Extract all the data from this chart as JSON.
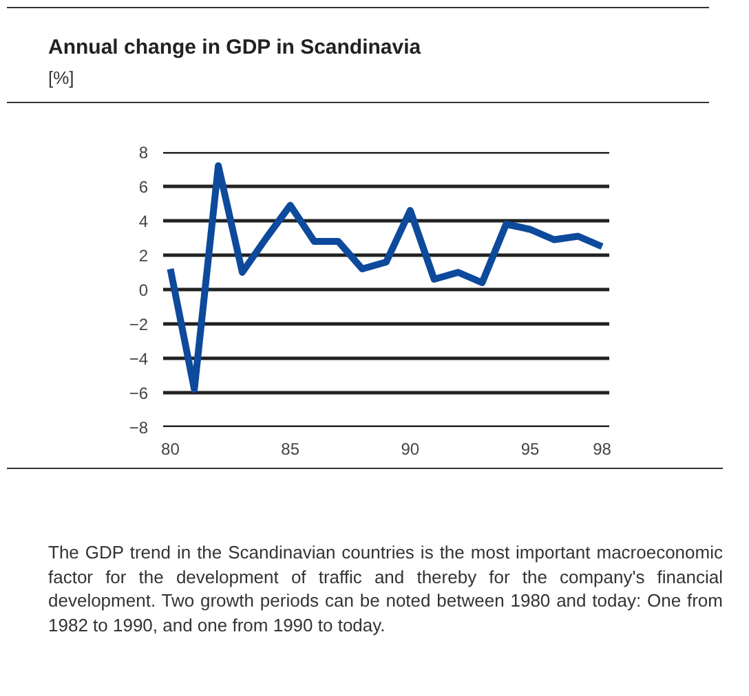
{
  "chart_data": {
    "type": "line",
    "title": "Annual change in GDP in Scandinavia",
    "subtitle": "[%]",
    "x": [
      80,
      81,
      82,
      83,
      84,
      85,
      86,
      87,
      88,
      89,
      90,
      91,
      92,
      93,
      94,
      95,
      96,
      97,
      98
    ],
    "series": [
      {
        "color": "#0d4a9c",
        "values": [
          1.2,
          -5.8,
          7.2,
          1.0,
          3.0,
          4.9,
          2.8,
          2.8,
          1.2,
          1.6,
          4.6,
          0.6,
          1.0,
          0.4,
          3.8,
          3.5,
          2.9,
          3.1,
          2.5
        ]
      }
    ],
    "xlim": [
      79.7,
      98.3
    ],
    "xticks": [
      80,
      85,
      90,
      95,
      98
    ],
    "ylim": [
      -8,
      8
    ],
    "yticks": [
      -8,
      -6,
      -4,
      -2,
      0,
      2,
      4,
      6,
      8
    ],
    "grid": "y",
    "marker": "none",
    "line_style": "solid",
    "annotations": [
      "The GDP trend in the Scandinavian countries is the most important macroeconomic factor for the development of traffic and thereby for the company's financial development. Two growth periods can be noted between 1980 and today: One from 1982 to 1990, and one from 1990 to today."
    ]
  }
}
